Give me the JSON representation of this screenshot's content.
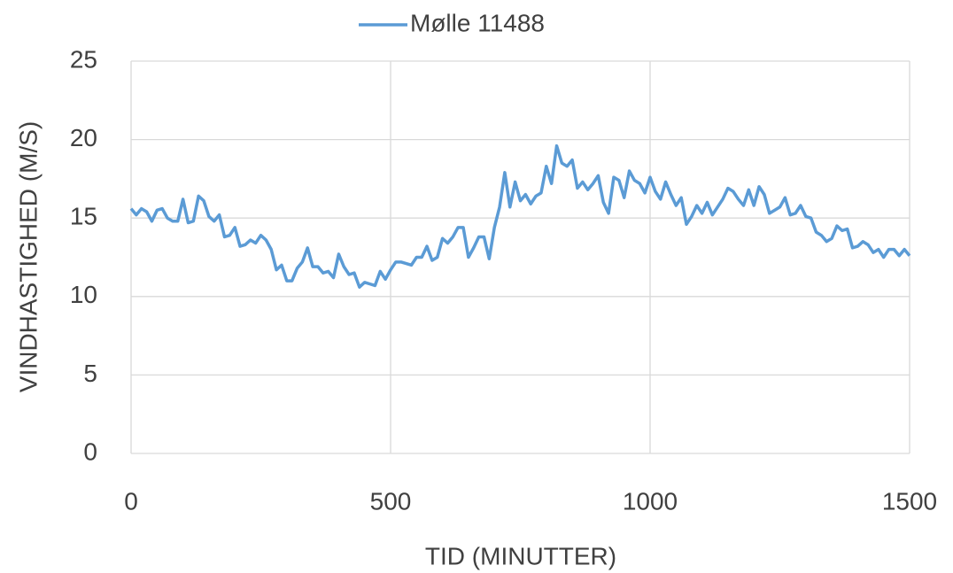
{
  "chart_data": {
    "type": "line",
    "x_label": "TID (MINUTTER)",
    "y_label": "VINDHASTIGHED (M/S)",
    "x": [
      0,
      10,
      20,
      30,
      40,
      50,
      60,
      70,
      80,
      90,
      100,
      110,
      120,
      130,
      140,
      150,
      160,
      170,
      180,
      190,
      200,
      210,
      220,
      230,
      240,
      250,
      260,
      270,
      280,
      290,
      300,
      310,
      320,
      330,
      340,
      350,
      360,
      370,
      380,
      390,
      400,
      410,
      420,
      430,
      440,
      450,
      460,
      470,
      480,
      490,
      500,
      510,
      520,
      530,
      540,
      550,
      560,
      570,
      580,
      590,
      600,
      610,
      620,
      630,
      640,
      650,
      660,
      670,
      680,
      690,
      700,
      710,
      720,
      730,
      740,
      750,
      760,
      770,
      780,
      790,
      800,
      810,
      820,
      830,
      840,
      850,
      860,
      870,
      880,
      890,
      900,
      910,
      920,
      930,
      940,
      950,
      960,
      970,
      980,
      990,
      1000,
      1010,
      1020,
      1030,
      1040,
      1050,
      1060,
      1070,
      1080,
      1090,
      1100,
      1110,
      1120,
      1130,
      1140,
      1150,
      1160,
      1170,
      1180,
      1190,
      1200,
      1210,
      1220,
      1230,
      1240,
      1250,
      1260,
      1270,
      1280,
      1290,
      1300,
      1310,
      1320,
      1330,
      1340,
      1350,
      1360,
      1370,
      1380,
      1390,
      1400,
      1410,
      1420,
      1430,
      1440,
      1450,
      1460,
      1470,
      1480,
      1490,
      1500
    ],
    "series": [
      {
        "name": "Mølle 11488",
        "color": "#5b9bd5",
        "values": [
          15.6,
          15.2,
          15.6,
          15.4,
          14.8,
          15.5,
          15.6,
          15.0,
          14.8,
          14.8,
          16.2,
          14.7,
          14.8,
          16.4,
          16.1,
          15.1,
          14.8,
          15.2,
          13.8,
          13.9,
          14.4,
          13.2,
          13.3,
          13.6,
          13.4,
          13.9,
          13.6,
          13.0,
          11.7,
          12.0,
          11.0,
          11.0,
          11.8,
          12.2,
          13.1,
          11.9,
          11.9,
          11.5,
          11.6,
          11.2,
          12.7,
          11.9,
          11.4,
          11.5,
          10.6,
          10.9,
          10.8,
          10.7,
          11.6,
          11.1,
          11.7,
          12.2,
          12.2,
          12.1,
          12.0,
          12.5,
          12.5,
          13.2,
          12.3,
          12.5,
          13.7,
          13.4,
          13.8,
          14.4,
          14.4,
          12.5,
          13.1,
          13.8,
          13.8,
          12.4,
          14.4,
          15.7,
          17.9,
          15.7,
          17.3,
          16.1,
          16.5,
          15.9,
          16.4,
          16.6,
          18.3,
          17.2,
          19.6,
          18.5,
          18.3,
          18.7,
          16.9,
          17.3,
          16.8,
          17.2,
          17.7,
          16.0,
          15.3,
          17.6,
          17.4,
          16.3,
          18.0,
          17.4,
          17.2,
          16.6,
          17.6,
          16.7,
          16.2,
          17.3,
          16.5,
          15.8,
          16.3,
          14.6,
          15.1,
          15.8,
          15.3,
          16.0,
          15.2,
          15.7,
          16.2,
          16.9,
          16.7,
          16.2,
          15.8,
          16.8,
          15.8,
          17.0,
          16.5,
          15.3,
          15.5,
          15.7,
          16.3,
          15.2,
          15.3,
          15.8,
          15.1,
          15.0,
          14.1,
          13.9,
          13.5,
          13.7,
          14.5,
          14.2,
          14.3,
          13.1,
          13.2,
          13.5,
          13.3,
          12.8,
          13.0,
          12.5,
          13.0,
          13.0,
          12.6,
          13.0,
          12.6
        ]
      }
    ],
    "xlim": [
      0,
      1500
    ],
    "xticks": [
      0,
      500,
      1000,
      1500
    ],
    "ylim": [
      0,
      25
    ],
    "yticks": [
      0,
      5,
      10,
      15,
      20,
      25
    ],
    "grid": true,
    "legend": "top"
  }
}
